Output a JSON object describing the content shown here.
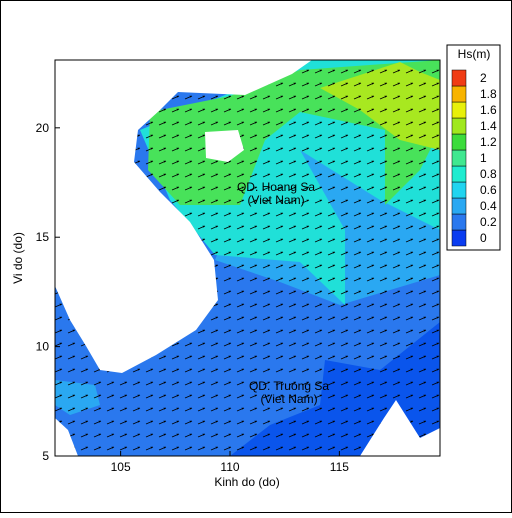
{
  "chart_data": {
    "type": "contour",
    "xlabel": "Kinh do (do)",
    "ylabel": "Vi do (do)",
    "xlim": [
      102,
      119.6
    ],
    "ylim": [
      5,
      23.1
    ],
    "xticks": [
      105,
      110,
      115
    ],
    "yticks": [
      5,
      10,
      15,
      20
    ],
    "annotations": [
      "QD. Hoang Sa",
      "(Viet Nam)",
      "QD. Truong Sa",
      "(Viet Nam)"
    ],
    "colorbar": {
      "title": "Hs(m)",
      "ticks": [
        0,
        0.2,
        0.4,
        0.6,
        0.8,
        1,
        1.2,
        1.4,
        1.6,
        1.8,
        2
      ],
      "colors": [
        "#0a3cf0",
        "#2a78ee",
        "#2aa8f2",
        "#20d4f0",
        "#20ecd0",
        "#40e890",
        "#3cdc3c",
        "#a0e81e",
        "#e8f00a",
        "#f8b400",
        "#f03c14"
      ]
    }
  }
}
